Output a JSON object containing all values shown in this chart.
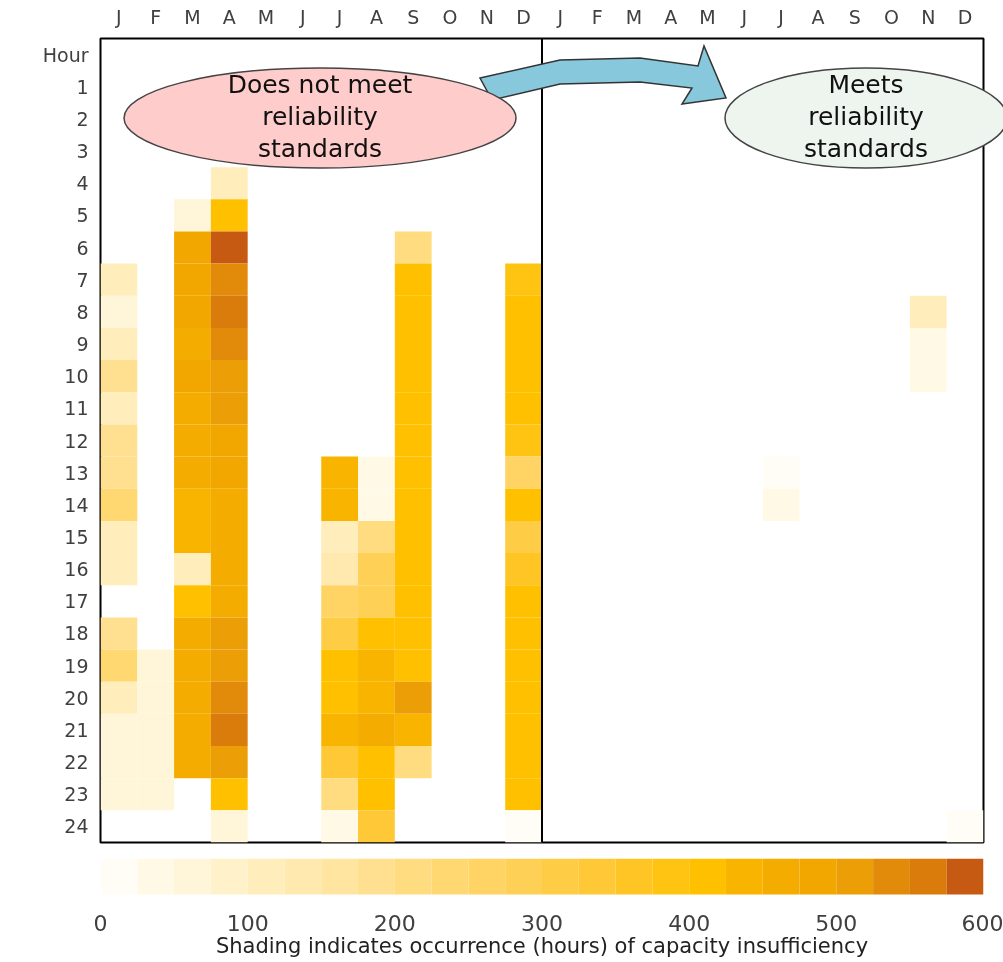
{
  "chart_data": {
    "type": "heatmap",
    "categories": [
      "J",
      "F",
      "M",
      "A",
      "M",
      "J",
      "J",
      "A",
      "S",
      "O",
      "N",
      "D",
      "J",
      "F",
      "M",
      "A",
      "M",
      "J",
      "J",
      "A",
      "S",
      "O",
      "N",
      "D"
    ],
    "ylabel": "Hour",
    "y_categories": [
      "1",
      "2",
      "3",
      "4",
      "5",
      "6",
      "7",
      "8",
      "9",
      "10",
      "11",
      "12",
      "13",
      "14",
      "15",
      "16",
      "17",
      "18",
      "19",
      "20",
      "21",
      "22",
      "23",
      "24"
    ],
    "cells": [
      [
        null,
        null,
        null,
        null,
        null,
        null,
        null,
        null,
        null,
        null,
        null,
        null,
        null,
        null,
        null,
        null,
        null,
        null,
        null,
        null,
        null,
        null,
        null,
        null
      ],
      [
        null,
        null,
        null,
        null,
        null,
        null,
        null,
        null,
        null,
        null,
        null,
        null,
        null,
        null,
        null,
        null,
        null,
        null,
        null,
        null,
        null,
        null,
        null,
        null
      ],
      [
        null,
        null,
        null,
        null,
        null,
        null,
        null,
        null,
        null,
        null,
        null,
        null,
        null,
        null,
        null,
        null,
        null,
        null,
        null,
        null,
        null,
        null,
        null,
        null
      ],
      [
        null,
        null,
        null,
        110,
        null,
        null,
        null,
        null,
        null,
        null,
        null,
        null,
        null,
        null,
        null,
        null,
        null,
        null,
        null,
        null,
        null,
        null,
        null,
        null
      ],
      [
        null,
        null,
        60,
        420,
        null,
        null,
        null,
        null,
        null,
        null,
        null,
        null,
        null,
        null,
        null,
        null,
        null,
        null,
        null,
        null,
        null,
        null,
        null,
        null
      ],
      [
        null,
        null,
        475,
        590,
        null,
        null,
        null,
        null,
        200,
        null,
        null,
        null,
        null,
        null,
        null,
        null,
        null,
        null,
        null,
        null,
        null,
        null,
        null,
        null
      ],
      [
        110,
        null,
        475,
        540,
        null,
        null,
        null,
        null,
        410,
        null,
        null,
        375,
        null,
        null,
        null,
        null,
        null,
        null,
        null,
        null,
        null,
        null,
        null,
        null
      ],
      [
        50,
        null,
        475,
        550,
        null,
        null,
        null,
        null,
        410,
        null,
        null,
        410,
        null,
        null,
        null,
        null,
        null,
        null,
        null,
        null,
        null,
        null,
        110,
        null
      ],
      [
        110,
        null,
        460,
        540,
        null,
        null,
        null,
        null,
        410,
        null,
        null,
        410,
        null,
        null,
        null,
        null,
        null,
        null,
        null,
        null,
        null,
        null,
        40,
        null
      ],
      [
        190,
        null,
        475,
        510,
        null,
        null,
        null,
        null,
        410,
        null,
        null,
        410,
        null,
        null,
        null,
        null,
        null,
        null,
        null,
        null,
        null,
        null,
        40,
        null
      ],
      [
        110,
        null,
        450,
        500,
        null,
        null,
        null,
        null,
        410,
        null,
        null,
        410,
        null,
        null,
        null,
        null,
        null,
        null,
        null,
        null,
        null,
        null,
        null,
        null
      ],
      [
        190,
        null,
        450,
        475,
        null,
        null,
        null,
        null,
        410,
        null,
        null,
        375,
        null,
        null,
        null,
        null,
        null,
        null,
        null,
        null,
        null,
        null,
        null,
        null
      ],
      [
        190,
        null,
        450,
        475,
        null,
        null,
        430,
        30,
        410,
        null,
        null,
        270,
        null,
        null,
        null,
        null,
        null,
        null,
        20,
        null,
        null,
        null,
        null,
        null
      ],
      [
        240,
        null,
        440,
        450,
        null,
        null,
        430,
        30,
        410,
        null,
        null,
        400,
        null,
        null,
        null,
        null,
        null,
        null,
        45,
        null,
        null,
        null,
        null,
        null
      ],
      [
        110,
        null,
        440,
        460,
        null,
        null,
        110,
        200,
        410,
        null,
        null,
        320,
        null,
        null,
        null,
        null,
        null,
        null,
        null,
        null,
        null,
        null,
        null,
        null
      ],
      [
        110,
        null,
        110,
        465,
        null,
        null,
        125,
        280,
        410,
        null,
        null,
        360,
        null,
        null,
        null,
        null,
        null,
        null,
        null,
        null,
        null,
        null,
        null,
        null
      ],
      [
        null,
        null,
        420,
        455,
        null,
        null,
        260,
        280,
        410,
        null,
        null,
        410,
        null,
        null,
        null,
        null,
        null,
        null,
        null,
        null,
        null,
        null,
        null,
        null
      ],
      [
        190,
        null,
        460,
        500,
        null,
        null,
        320,
        420,
        410,
        null,
        null,
        410,
        null,
        null,
        null,
        null,
        null,
        null,
        null,
        null,
        null,
        null,
        null,
        null
      ],
      [
        240,
        50,
        460,
        500,
        null,
        null,
        415,
        430,
        410,
        null,
        null,
        410,
        null,
        null,
        null,
        null,
        null,
        null,
        null,
        null,
        null,
        null,
        null,
        null
      ],
      [
        110,
        50,
        460,
        540,
        null,
        null,
        420,
        445,
        505,
        null,
        null,
        410,
        null,
        null,
        null,
        null,
        null,
        null,
        null,
        null,
        null,
        null,
        null,
        null
      ],
      [
        50,
        50,
        465,
        555,
        null,
        null,
        445,
        460,
        430,
        null,
        null,
        410,
        null,
        null,
        null,
        null,
        null,
        null,
        null,
        null,
        null,
        null,
        null,
        null
      ],
      [
        50,
        50,
        455,
        505,
        null,
        null,
        330,
        420,
        210,
        null,
        null,
        410,
        null,
        null,
        null,
        null,
        null,
        null,
        null,
        null,
        null,
        null,
        null,
        null
      ],
      [
        50,
        50,
        null,
        420,
        null,
        null,
        200,
        420,
        null,
        null,
        null,
        410,
        null,
        null,
        null,
        null,
        null,
        null,
        null,
        null,
        null,
        null,
        null,
        null
      ],
      [
        null,
        null,
        null,
        60,
        null,
        null,
        40,
        330,
        null,
        null,
        null,
        15,
        null,
        null,
        null,
        null,
        null,
        null,
        null,
        null,
        null,
        null,
        null,
        10
      ]
    ],
    "clim": [
      0,
      600
    ],
    "cticks": [
      0,
      100,
      200,
      300,
      400,
      500,
      600
    ],
    "clabel": "Shading indicates occurrence (hours) of capacity insufficiency",
    "annotations": [
      "Does not meet reliability standards",
      "Meets reliability standards"
    ]
  }
}
